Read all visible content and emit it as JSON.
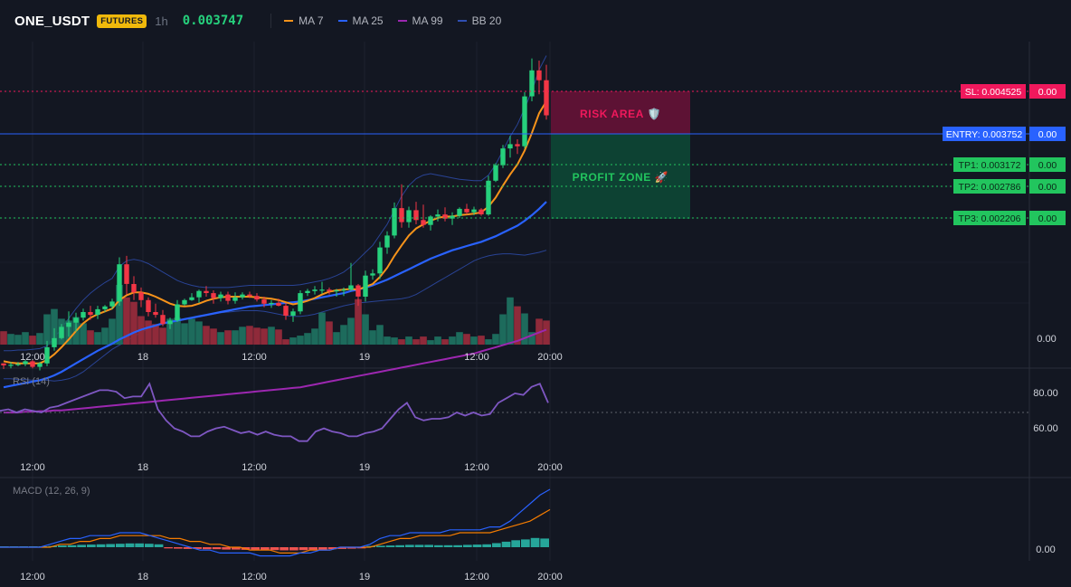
{
  "header": {
    "symbol": "ONE_USDT",
    "badge": "FUTURES",
    "timeframe": "1h",
    "last_price": "0.003747",
    "indicators": [
      {
        "label": "MA 7",
        "color": "#f7931a"
      },
      {
        "label": "MA 25",
        "color": "#2962ff"
      },
      {
        "label": "MA 99",
        "color": "#9c27b0"
      },
      {
        "label": "BB 20",
        "color": "#2f4fb3"
      }
    ]
  },
  "colors": {
    "up": "#26d07c",
    "down": "#f23645",
    "vol_up": "#1d6b5c",
    "vol_down": "#8f2a3a",
    "sl": "#f0185c",
    "entry": "#2962ff",
    "tp": "#22c55e",
    "rsi": "#7e57c2",
    "macd": "#2962ff",
    "signal": "#f57c00"
  },
  "zones": {
    "risk_label": "RISK AREA 🛡️",
    "profit_label": "PROFIT ZONE 🚀"
  },
  "levels": {
    "sl": {
      "label": "SL: 0.004525",
      "value": 0.004525,
      "right": "0.00"
    },
    "entry": {
      "label": "ENTRY: 0.003752",
      "value": 0.003752,
      "right": "0.00"
    },
    "tp1": {
      "label": "TP1: 0.003172",
      "value": 0.003172,
      "right": "0.00"
    },
    "tp2": {
      "label": "TP2: 0.002786",
      "value": 0.002786,
      "right": "0.00"
    },
    "tp3": {
      "label": "TP3: 0.002206",
      "value": 0.002206,
      "right": "0.00"
    }
  },
  "price_axis_label": "0.00",
  "x_axis_labels": [
    "12:00",
    "18",
    "12:00",
    "19",
    "12:00",
    "20:00"
  ],
  "rsi": {
    "title": "RSI (14)",
    "axis": [
      "80.00",
      "60.00"
    ],
    "ylim": [
      45,
      95
    ],
    "midline": 70
  },
  "macd": {
    "title": "MACD (12, 26, 9)",
    "axis": [
      "0.00"
    ]
  },
  "chart_data": {
    "type": "candlestick",
    "price_ylim": [
      0.0005,
      0.0048
    ],
    "candles": [
      [
        0.00022,
        0.00022,
        0.00014,
        0.00019
      ],
      [
        0.00019,
        0.00024,
        0.00015,
        0.0002
      ],
      [
        0.0002,
        0.00024,
        0.00018,
        0.00021
      ],
      [
        0.00021,
        0.00027,
        0.00018,
        0.00025
      ],
      [
        0.00025,
        0.00028,
        0.00015,
        0.00017
      ],
      [
        0.00017,
        0.00024,
        0.00012,
        0.00022
      ],
      [
        0.00022,
        0.00054,
        0.00018,
        0.00045
      ],
      [
        0.00045,
        0.00072,
        0.0004,
        0.00058
      ],
      [
        0.00058,
        0.00078,
        0.00056,
        0.00074
      ],
      [
        0.00074,
        0.00096,
        0.0006,
        0.0008
      ],
      [
        0.0008,
        0.00094,
        0.00067,
        0.00087
      ],
      [
        0.00087,
        0.001,
        0.00083,
        0.00095
      ],
      [
        0.00095,
        0.00104,
        0.00084,
        0.00091
      ],
      [
        0.00091,
        0.00104,
        0.00085,
        0.00099
      ],
      [
        0.00099,
        0.00105,
        0.00095,
        0.00103
      ],
      [
        0.00103,
        0.00114,
        0.00099,
        0.0011
      ],
      [
        0.0011,
        0.00173,
        0.00104,
        0.00163
      ],
      [
        0.00163,
        0.00175,
        0.0012,
        0.00135
      ],
      [
        0.00135,
        0.00146,
        0.00112,
        0.00123
      ],
      [
        0.00123,
        0.0013,
        0.00102,
        0.00112
      ],
      [
        0.00112,
        0.00116,
        0.00089,
        0.00095
      ],
      [
        0.00095,
        0.00107,
        0.00087,
        0.00091
      ],
      [
        0.00091,
        0.00098,
        0.00075,
        0.00078
      ],
      [
        0.00078,
        0.00087,
        0.00071,
        0.00083
      ],
      [
        0.00083,
        0.00112,
        0.00081,
        0.00106
      ],
      [
        0.00106,
        0.00114,
        0.00104,
        0.00112
      ],
      [
        0.00112,
        0.00122,
        0.00111,
        0.00116
      ],
      [
        0.00116,
        0.00127,
        0.00108,
        0.00125
      ],
      [
        0.00125,
        0.00132,
        0.00117,
        0.00122
      ],
      [
        0.00122,
        0.00126,
        0.00107,
        0.00115
      ],
      [
        0.00115,
        0.00124,
        0.0011,
        0.0012
      ],
      [
        0.0012,
        0.00124,
        0.00106,
        0.00111
      ],
      [
        0.00111,
        0.00123,
        0.00107,
        0.00116
      ],
      [
        0.00116,
        0.00123,
        0.00113,
        0.0012
      ],
      [
        0.0012,
        0.00124,
        0.00115,
        0.00118
      ],
      [
        0.00118,
        0.00122,
        0.0011,
        0.00113
      ],
      [
        0.00113,
        0.00117,
        0.00102,
        0.00107
      ],
      [
        0.00107,
        0.00112,
        0.00101,
        0.00108
      ],
      [
        0.00108,
        0.00114,
        0.00103,
        0.00104
      ],
      [
        0.00104,
        0.00108,
        0.00084,
        0.0009
      ],
      [
        0.0009,
        0.001,
        0.00081,
        0.00096
      ],
      [
        0.00096,
        0.00126,
        0.00092,
        0.00122
      ],
      [
        0.00122,
        0.00128,
        0.00118,
        0.00125
      ],
      [
        0.00125,
        0.00132,
        0.0012,
        0.00127
      ],
      [
        0.00127,
        0.00138,
        0.00121,
        0.00127
      ],
      [
        0.00127,
        0.0013,
        0.0012,
        0.00125
      ],
      [
        0.00125,
        0.00128,
        0.00117,
        0.00126
      ],
      [
        0.00126,
        0.0013,
        0.00118,
        0.00127
      ],
      [
        0.00127,
        0.00165,
        0.00125,
        0.00133
      ],
      [
        0.00133,
        0.00135,
        0.00104,
        0.00117
      ],
      [
        0.00117,
        0.00154,
        0.0011,
        0.00147
      ],
      [
        0.00147,
        0.00156,
        0.00141,
        0.0015
      ],
      [
        0.0015,
        0.00195,
        0.00142,
        0.00187
      ],
      [
        0.00187,
        0.0021,
        0.00178,
        0.00204
      ],
      [
        0.00204,
        0.00251,
        0.002,
        0.00243
      ],
      [
        0.00243,
        0.00277,
        0.00215,
        0.00223
      ],
      [
        0.00223,
        0.00245,
        0.00215,
        0.0024
      ],
      [
        0.0024,
        0.00252,
        0.0022,
        0.00226
      ],
      [
        0.00226,
        0.00248,
        0.00215,
        0.00219
      ],
      [
        0.00219,
        0.00233,
        0.00211,
        0.00231
      ],
      [
        0.00231,
        0.00241,
        0.00224,
        0.00234
      ],
      [
        0.00234,
        0.00244,
        0.00224,
        0.00228
      ],
      [
        0.00228,
        0.00237,
        0.00219,
        0.00232
      ],
      [
        0.00232,
        0.00244,
        0.00229,
        0.00242
      ],
      [
        0.00242,
        0.00249,
        0.00234,
        0.00237
      ],
      [
        0.00237,
        0.00245,
        0.00233,
        0.00241
      ],
      [
        0.00241,
        0.00243,
        0.00232,
        0.00234
      ],
      [
        0.00234,
        0.00289,
        0.00232,
        0.00282
      ],
      [
        0.00282,
        0.00307,
        0.0028,
        0.00304
      ],
      [
        0.00304,
        0.00333,
        0.003,
        0.00328
      ],
      [
        0.00328,
        0.00346,
        0.00315,
        0.00334
      ],
      [
        0.00334,
        0.00341,
        0.0032,
        0.00331
      ],
      [
        0.00331,
        0.00408,
        0.00328,
        0.00402
      ],
      [
        0.00402,
        0.00456,
        0.00395,
        0.00439
      ],
      [
        0.00439,
        0.00453,
        0.00405,
        0.00425
      ],
      [
        0.00425,
        0.00447,
        0.00369,
        0.00375
      ]
    ],
    "ma7": [
      0.00025,
      0.00023,
      0.00022,
      0.00022,
      0.00022,
      0.00022,
      0.00027,
      0.00035,
      0.00045,
      0.00056,
      0.00068,
      0.00079,
      0.00087,
      0.00092,
      0.00096,
      0.001,
      0.00112,
      0.00119,
      0.00123,
      0.00123,
      0.00121,
      0.00117,
      0.00112,
      0.00107,
      0.00104,
      0.00103,
      0.00104,
      0.00107,
      0.00111,
      0.00114,
      0.00116,
      0.00117,
      0.00117,
      0.00117,
      0.00117,
      0.00116,
      0.00115,
      0.00114,
      0.00112,
      0.00109,
      0.00106,
      0.00108,
      0.00111,
      0.00115,
      0.0012,
      0.00124,
      0.00126,
      0.00127,
      0.00128,
      0.00127,
      0.00131,
      0.00135,
      0.00145,
      0.00158,
      0.00175,
      0.0019,
      0.00204,
      0.00214,
      0.0022,
      0.00225,
      0.00229,
      0.00231,
      0.00231,
      0.00233,
      0.00234,
      0.00235,
      0.00237,
      0.00245,
      0.00258,
      0.00275,
      0.00291,
      0.00305,
      0.00325,
      0.0035,
      0.00378,
      0.00395
    ],
    "ma25": [
      -0.00012,
      -0.0001,
      -8e-05,
      -6e-05,
      -4e-05,
      -2e-05,
      1e-05,
      5e-05,
      0.0001,
      0.00016,
      0.00022,
      0.00028,
      0.00034,
      0.0004,
      0.00045,
      0.0005,
      0.00056,
      0.00061,
      0.00066,
      0.0007,
      0.00073,
      0.00076,
      0.00079,
      0.00081,
      0.00083,
      0.00085,
      0.00087,
      0.00089,
      0.00091,
      0.00093,
      0.00095,
      0.00097,
      0.00099,
      0.00101,
      0.00103,
      0.00104,
      0.00105,
      0.00106,
      0.00107,
      0.00108,
      0.00109,
      0.0011,
      0.00112,
      0.00114,
      0.00116,
      0.00118,
      0.0012,
      0.00122,
      0.00125,
      0.00127,
      0.0013,
      0.00133,
      0.00137,
      0.00141,
      0.00146,
      0.00151,
      0.00156,
      0.00161,
      0.00166,
      0.00171,
      0.00175,
      0.00179,
      0.00183,
      0.00186,
      0.00189,
      0.00192,
      0.00195,
      0.00199,
      0.00203,
      0.00208,
      0.00213,
      0.00218,
      0.00225,
      0.00233,
      0.00242,
      0.00252
    ],
    "ma99": [
      -0.00048,
      -0.00048,
      -0.00048,
      -0.00047,
      -0.00047,
      -0.00046,
      -0.00046,
      -0.00045,
      -0.00045,
      -0.00044,
      -0.00043,
      -0.00042,
      -0.00041,
      -0.0004,
      -0.00039,
      -0.00038,
      -0.00037,
      -0.00036,
      -0.00035,
      -0.00034,
      -0.00033,
      -0.00032,
      -0.00031,
      -0.0003,
      -0.00029,
      -0.00028,
      -0.00027,
      -0.00026,
      -0.00025,
      -0.00024,
      -0.00023,
      -0.00022,
      -0.00021,
      -0.0002,
      -0.00019,
      -0.00018,
      -0.00017,
      -0.00016,
      -0.00015,
      -0.00014,
      -0.00013,
      -0.00012,
      -0.0001,
      -8e-05,
      -6e-05,
      -4e-05,
      -2e-05,
      0.0,
      2e-05,
      4e-05,
      6e-05,
      8e-05,
      0.0001,
      0.00012,
      0.00014,
      0.00016,
      0.00018,
      0.0002,
      0.00022,
      0.00024,
      0.00026,
      0.00028,
      0.0003,
      0.00032,
      0.00034,
      0.00036,
      0.00039,
      0.00042,
      0.00045,
      0.00048,
      0.00051,
      0.00054,
      0.00058,
      0.00062,
      0.00066,
      0.0007
    ],
    "bb_upper": [
      0.0004,
      0.0004,
      0.00041,
      0.00041,
      0.00042,
      0.00043,
      0.00047,
      0.00058,
      0.00072,
      0.00086,
      0.001,
      0.00112,
      0.00122,
      0.0013,
      0.00137,
      0.00143,
      0.0016,
      0.00168,
      0.0017,
      0.00168,
      0.00164,
      0.00158,
      0.00152,
      0.00146,
      0.0014,
      0.00136,
      0.00133,
      0.00131,
      0.0013,
      0.0013,
      0.0013,
      0.0013,
      0.00131,
      0.00132,
      0.00133,
      0.00133,
      0.00133,
      0.00133,
      0.00133,
      0.00133,
      0.00133,
      0.00134,
      0.00136,
      0.00138,
      0.0014,
      0.00143,
      0.00147,
      0.00152,
      0.0016,
      0.0017,
      0.0018,
      0.0019,
      0.00205,
      0.0022,
      0.0024,
      0.0026,
      0.00275,
      0.00285,
      0.0029,
      0.00292,
      0.0029,
      0.00288,
      0.00286,
      0.00284,
      0.00283,
      0.00282,
      0.00282,
      0.0029,
      0.00305,
      0.00325,
      0.00345,
      0.00362,
      0.00385,
      0.0041,
      0.0044,
      0.0046
    ],
    "bb_lower": [
      0.0,
      0.0,
      -1e-05,
      -1e-05,
      -2e-05,
      -2e-05,
      -2e-05,
      -3e-05,
      -2e-05,
      0.0,
      4e-05,
      0.0001,
      0.00018,
      0.00026,
      0.00034,
      0.00042,
      0.00048,
      0.00054,
      0.0006,
      0.00066,
      0.00071,
      0.00075,
      0.00078,
      0.0008,
      0.00082,
      0.00084,
      0.00086,
      0.00088,
      0.0009,
      0.00092,
      0.00094,
      0.00095,
      0.00096,
      0.00097,
      0.00097,
      0.00097,
      0.00096,
      0.00094,
      0.00092,
      0.0009,
      0.00089,
      0.00089,
      0.0009,
      0.00092,
      0.00095,
      0.00098,
      0.00101,
      0.00104,
      0.00106,
      0.00108,
      0.00109,
      0.0011,
      0.00111,
      0.00112,
      0.00113,
      0.00114,
      0.00116,
      0.0012,
      0.00126,
      0.00132,
      0.00138,
      0.00144,
      0.0015,
      0.00156,
      0.00162,
      0.00168,
      0.00172,
      0.00175,
      0.00177,
      0.00178,
      0.00178,
      0.00177,
      0.00176,
      0.00178,
      0.0018,
      0.00183
    ],
    "volume": [
      15,
      12,
      11,
      14,
      10,
      13,
      34,
      40,
      29,
      27,
      31,
      24,
      16,
      14,
      19,
      29,
      67,
      53,
      48,
      32,
      27,
      23,
      19,
      29,
      30,
      24,
      29,
      26,
      21,
      18,
      14,
      16,
      16,
      20,
      21,
      19,
      18,
      20,
      17,
      6,
      8,
      10,
      13,
      18,
      36,
      26,
      14,
      22,
      30,
      51,
      34,
      16,
      22,
      9,
      8,
      6,
      9,
      6,
      9,
      5,
      9,
      6,
      9,
      14,
      12,
      9,
      10,
      6,
      12,
      34,
      53,
      43,
      35,
      14,
      29,
      27
    ],
    "rsi": [
      71,
      72,
      70,
      72,
      71,
      70,
      73,
      74,
      76,
      78,
      80,
      82,
      84,
      84,
      83,
      79,
      80,
      80,
      88,
      72,
      65,
      60,
      58,
      55,
      55,
      58,
      60,
      61,
      59,
      57,
      58,
      56,
      58,
      56,
      55,
      55,
      52,
      52,
      58,
      60,
      58,
      57,
      55,
      55,
      57,
      58,
      60,
      66,
      72,
      76,
      67,
      65,
      66,
      66,
      67,
      70,
      68,
      70,
      68,
      69,
      76,
      79,
      82,
      81,
      86,
      88,
      76
    ],
    "macd": [
      0.0,
      0.0,
      0.0,
      0.0,
      0.0,
      0.0001,
      0.0002,
      0.0003,
      0.0003,
      0.0004,
      0.0004,
      0.0004,
      0.0005,
      0.0005,
      0.0005,
      0.0004,
      0.0003,
      0.0002,
      0.0001,
      0.0,
      -0.0001,
      -0.0001,
      -0.0002,
      -0.0002,
      -0.0002,
      -0.0002,
      -0.0003,
      -0.0003,
      -0.0003,
      -0.0003,
      -0.0002,
      -0.0002,
      -0.0001,
      -0.0001,
      0.0,
      0.0,
      0.0,
      0.0001,
      0.0003,
      0.0004,
      0.0004,
      0.0005,
      0.0005,
      0.0005,
      0.0005,
      0.0006,
      0.0006,
      0.0006,
      0.0006,
      0.0007,
      0.0007,
      0.0009,
      0.0012,
      0.0015,
      0.0018,
      0.002
    ],
    "signal": [
      0.0,
      0.0,
      0.0,
      0.0,
      0.0,
      0.0,
      0.0001,
      0.0001,
      0.0002,
      0.0002,
      0.0003,
      0.0003,
      0.0004,
      0.0004,
      0.0004,
      0.0004,
      0.0004,
      0.0003,
      0.0003,
      0.0002,
      0.0002,
      0.0001,
      0.0001,
      0.0,
      0.0,
      -0.0001,
      -0.0001,
      -0.0001,
      -0.0002,
      -0.0002,
      -0.0002,
      -0.0001,
      -0.0001,
      -0.0001,
      0.0,
      0.0,
      0.0,
      0.0,
      0.0001,
      0.0002,
      0.0003,
      0.0003,
      0.0004,
      0.0004,
      0.0004,
      0.0004,
      0.0005,
      0.0005,
      0.0005,
      0.0005,
      0.0006,
      0.0007,
      0.0008,
      0.0009,
      0.0011,
      0.0013
    ],
    "histogram": [
      3e-05,
      3e-05,
      3e-05,
      3e-05,
      3e-05,
      4e-05,
      6e-05,
      7e-05,
      8e-05,
      9e-05,
      0.0001,
      0.00011,
      0.00012,
      0.00013,
      0.00013,
      0.00012,
      0.0001,
      -4e-05,
      -5e-05,
      -6e-05,
      -6e-05,
      -7e-05,
      -7e-05,
      -8e-05,
      -8e-05,
      -9e-05,
      -9e-05,
      -0.0001,
      -0.0001,
      -0.00011,
      -0.00011,
      -0.0001,
      -9e-05,
      -8e-05,
      -7e-05,
      -6e-05,
      -5e-05,
      -4e-05,
      4e-05,
      5e-05,
      6e-05,
      7e-05,
      8e-05,
      8e-05,
      8e-05,
      7e-05,
      7e-05,
      7e-05,
      8e-05,
      9e-05,
      0.0001,
      0.00014,
      0.00019,
      0.00024,
      0.00027,
      0.00032,
      0.0003
    ]
  }
}
